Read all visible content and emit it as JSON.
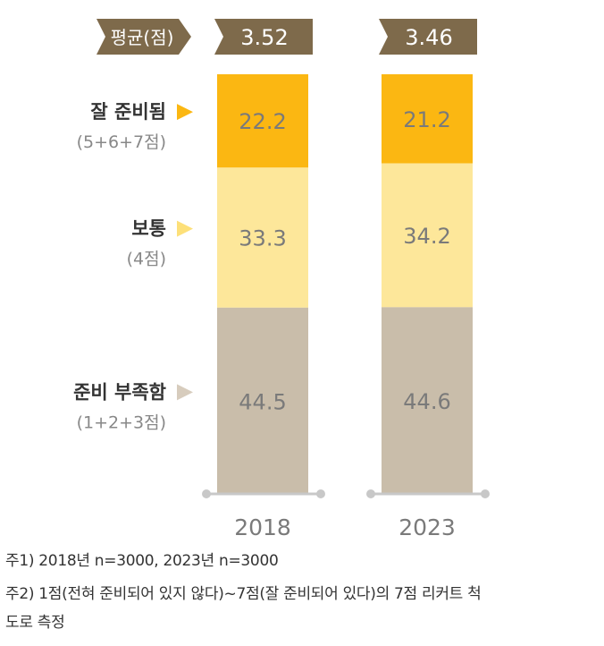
{
  "chart_data": {
    "type": "bar",
    "stacked": true,
    "categories": [
      "2018",
      "2023"
    ],
    "averages": {
      "label": "평균(점)",
      "values": [
        "3.52",
        "3.46"
      ]
    },
    "series": [
      {
        "name": "잘 준비됨",
        "sublabel": "(5+6+7점)",
        "values": [
          22.2,
          21.2
        ],
        "color": "#fbb712",
        "marker_color": "#fbb712"
      },
      {
        "name": "보통",
        "sublabel": "(4점)",
        "values": [
          33.3,
          34.2
        ],
        "color": "#fde79a",
        "marker_color": "#fde079"
      },
      {
        "name": "준비 부족함",
        "sublabel": "(1+2+3점)",
        "values": [
          44.5,
          44.6
        ],
        "color": "#c9bdaa",
        "marker_color": "#d7ccbd"
      }
    ],
    "ylim": [
      0,
      100
    ],
    "grid": false,
    "badge_color": "#7e6a4b",
    "value_text_color": "#7a7a7a",
    "axis_color": "#c8c8c8"
  },
  "notes": [
    "주1) 2018년 n=3000, 2023년 n=3000",
    "주2) 1점(전혀 준비되어 있지 않다)~7점(잘 준비되어 있다)의 7점 리커트 척",
    "도로 측정"
  ]
}
